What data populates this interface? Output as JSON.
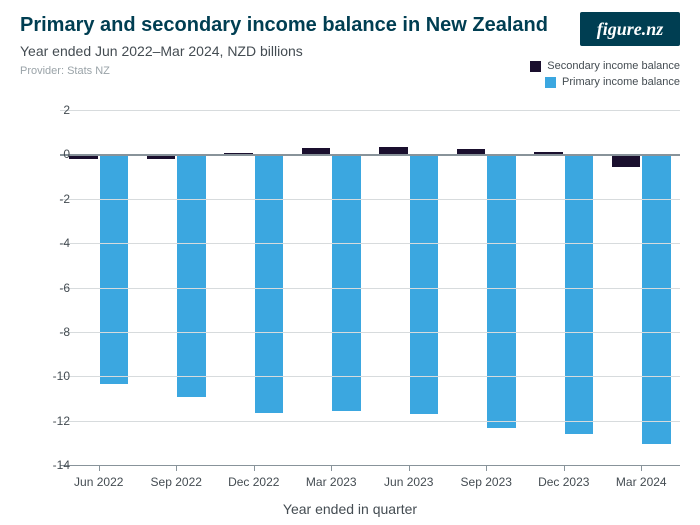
{
  "header": {
    "title": "Primary and secondary income balance in New Zealand",
    "subtitle": "Year ended Jun 2022–Mar 2024, NZD billions",
    "provider": "Provider: Stats NZ"
  },
  "brand": {
    "logo_text": "figure.nz",
    "logo_bg": "#003e52",
    "logo_fg": "#ffffff"
  },
  "legend": {
    "items": [
      {
        "label": "Secondary income balance",
        "color": "#1a0f2e"
      },
      {
        "label": "Primary income balance",
        "color": "#3ba7e0"
      }
    ]
  },
  "chart": {
    "type": "bar",
    "xlabel": "Year ended in quarter",
    "title_color": "#003e52",
    "text_color": "#444c52",
    "provider_color": "#9aa3a8",
    "grid_color": "#d7dbdd",
    "zero_line_color": "#88939a",
    "background_color": "#ffffff",
    "title_fontsize": 20,
    "subtitle_fontsize": 14,
    "provider_fontsize": 11,
    "tick_fontsize": 12,
    "xlabel_fontsize": 14,
    "ylim": [
      -14,
      2
    ],
    "yticks": [
      2,
      0,
      -2,
      -4,
      -6,
      -8,
      -10,
      -12,
      -14
    ],
    "categories": [
      "Jun 2022",
      "Sep 2022",
      "Dec 2022",
      "Mar 2023",
      "Jun 2023",
      "Sep 2023",
      "Dec 2023",
      "Mar 2024"
    ],
    "cat_group_width": 0.76,
    "bar_gap": 0.02,
    "series": [
      {
        "name": "Secondary income balance",
        "color": "#1a0f2e",
        "values": [
          -0.2,
          -0.2,
          0.05,
          0.3,
          0.35,
          0.25,
          0.1,
          -0.55
        ]
      },
      {
        "name": "Primary income balance",
        "color": "#3ba7e0",
        "values": [
          -10.35,
          -10.95,
          -11.65,
          -11.55,
          -11.7,
          -12.35,
          -12.6,
          -13.05
        ]
      }
    ]
  }
}
